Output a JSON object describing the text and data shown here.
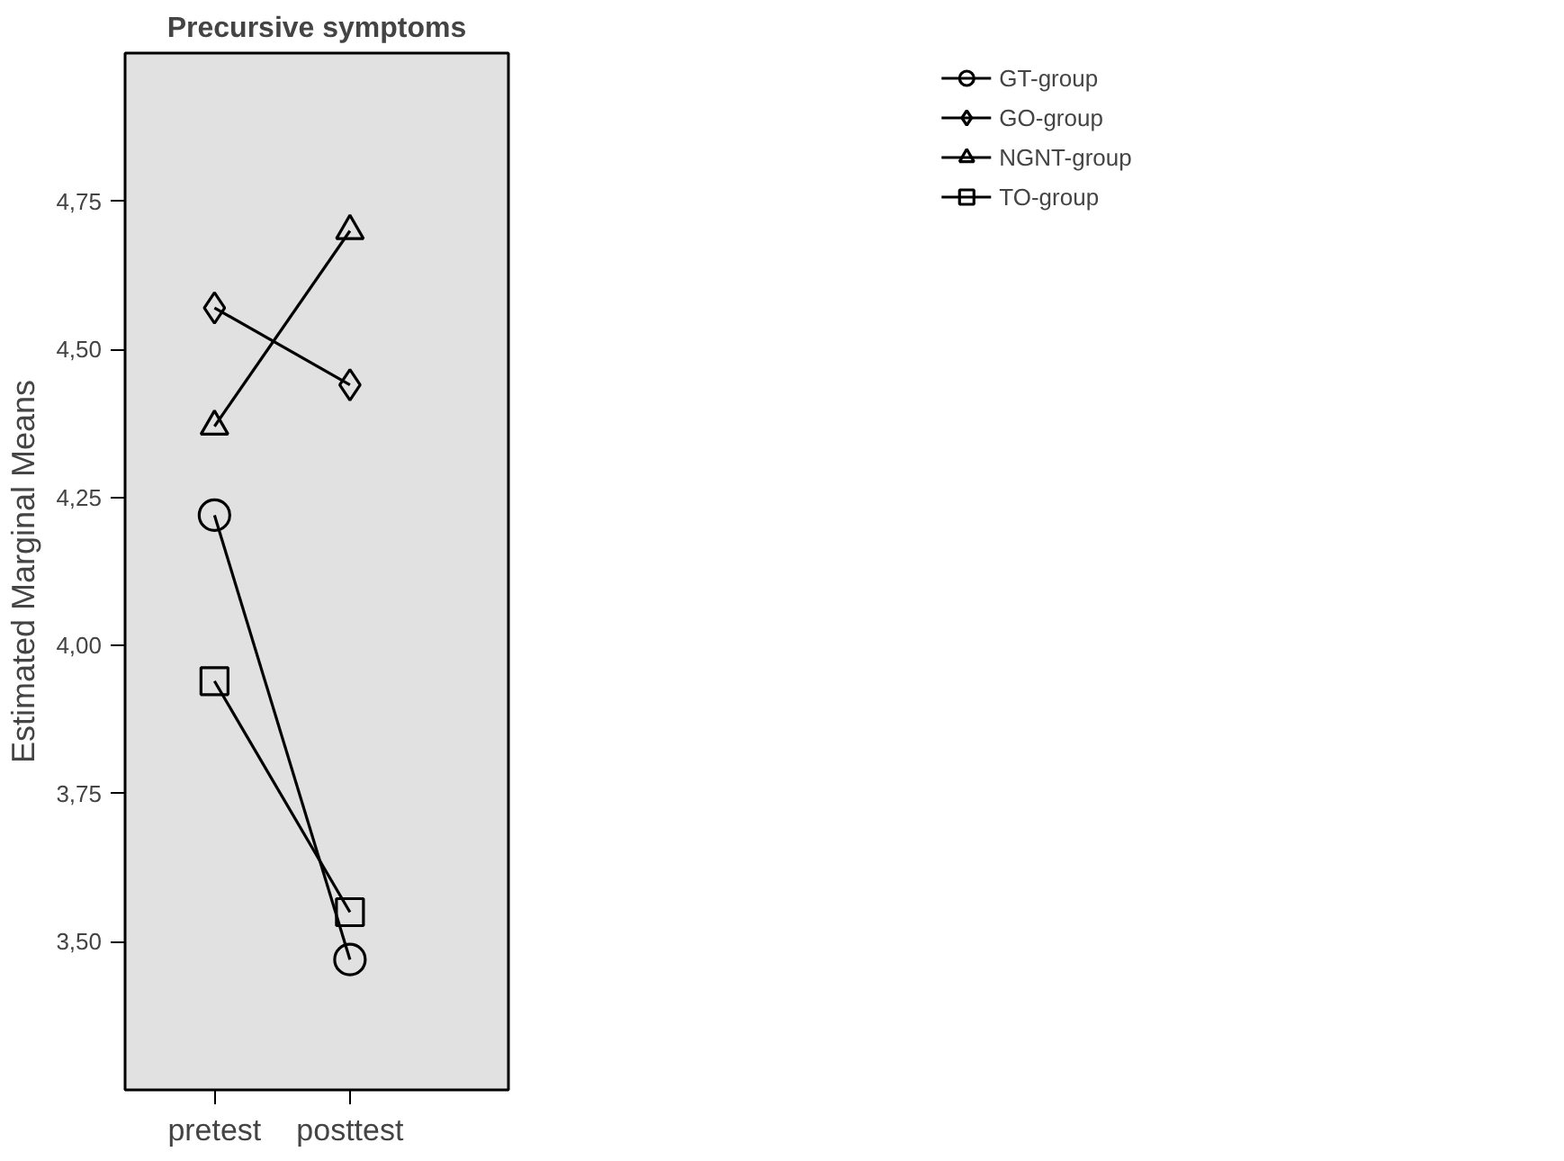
{
  "chart_data": {
    "type": "line",
    "title": "Precursive symptoms",
    "ylabel": "Estimated Marginal Means",
    "categories": [
      "pretest",
      "posttest"
    ],
    "series": [
      {
        "name": "GT-group",
        "color": "#000000",
        "marker": "circle",
        "values": [
          4.22,
          3.47
        ]
      },
      {
        "name": "GO-group",
        "color": "#000000",
        "marker": "diamond",
        "values": [
          4.57,
          4.44
        ]
      },
      {
        "name": "NGNT-group",
        "color": "#000000",
        "marker": "triangle",
        "values": [
          4.37,
          4.7
        ]
      },
      {
        "name": "TO-group",
        "color": "#000000",
        "marker": "square",
        "values": [
          3.94,
          3.55
        ]
      }
    ],
    "ylim": [
      3.25,
      5.0
    ],
    "yticks": [
      {
        "value": 3.5,
        "label": "3,50"
      },
      {
        "value": 3.75,
        "label": "3,75"
      },
      {
        "value": 4.0,
        "label": "4,00"
      },
      {
        "value": 4.25,
        "label": "4,25"
      },
      {
        "value": 4.5,
        "label": "4,50"
      },
      {
        "value": 4.75,
        "label": "4,75"
      }
    ],
    "grid": false,
    "legend": "right",
    "line_style": "solid"
  }
}
